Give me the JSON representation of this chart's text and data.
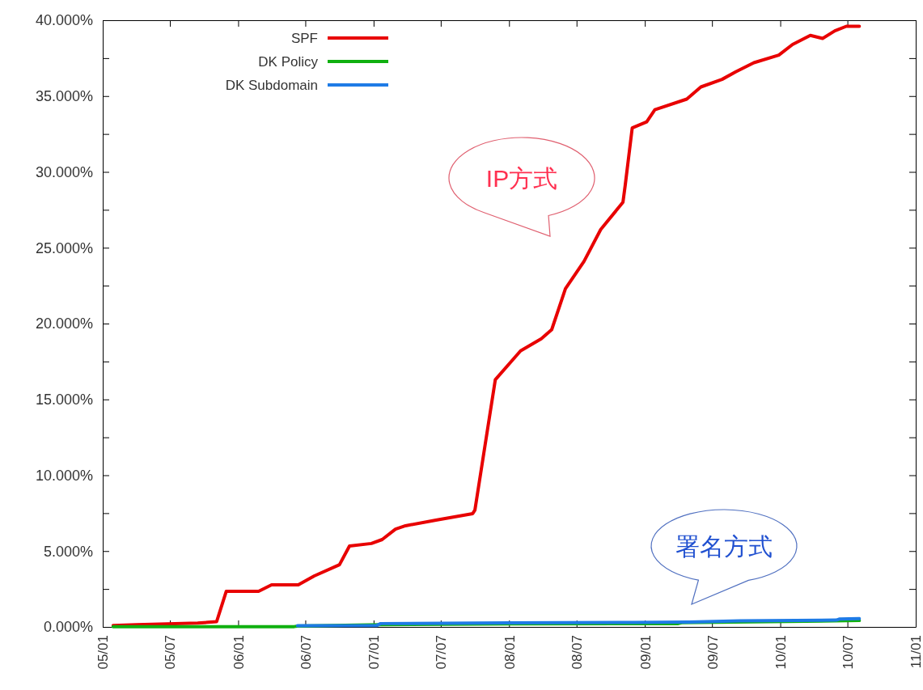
{
  "chart_data": {
    "type": "line",
    "xlim": [
      "2005-01-01",
      "2011-01-01"
    ],
    "xticks": [
      {
        "value": "2005-01-01",
        "label": "05/01"
      },
      {
        "value": "2005-07-01",
        "label": "05/07"
      },
      {
        "value": "2006-01-01",
        "label": "06/01"
      },
      {
        "value": "2006-07-01",
        "label": "06/07"
      },
      {
        "value": "2007-01-01",
        "label": "07/01"
      },
      {
        "value": "2007-07-01",
        "label": "07/07"
      },
      {
        "value": "2008-01-01",
        "label": "08/01"
      },
      {
        "value": "2008-07-01",
        "label": "08/07"
      },
      {
        "value": "2009-01-01",
        "label": "09/01"
      },
      {
        "value": "2009-07-01",
        "label": "09/07"
      },
      {
        "value": "2010-01-01",
        "label": "10/01"
      },
      {
        "value": "2010-07-01",
        "label": "10/07"
      },
      {
        "value": "2011-01-01",
        "label": "11/01"
      }
    ],
    "ylim": [
      0,
      40
    ],
    "yticks": [
      {
        "value": 0,
        "label": "0.000%"
      },
      {
        "value": 2.5,
        "label": null
      },
      {
        "value": 5,
        "label": "5.000%"
      },
      {
        "value": 7.5,
        "label": null
      },
      {
        "value": 10,
        "label": "10.000%"
      },
      {
        "value": 12.5,
        "label": null
      },
      {
        "value": 15,
        "label": "15.000%"
      },
      {
        "value": 17.5,
        "label": null
      },
      {
        "value": 20,
        "label": "20.000%"
      },
      {
        "value": 22.5,
        "label": null
      },
      {
        "value": 25,
        "label": "25.000%"
      },
      {
        "value": 27.5,
        "label": null
      },
      {
        "value": 30,
        "label": "30.000%"
      },
      {
        "value": 32.5,
        "label": null
      },
      {
        "value": 35,
        "label": "35.000%"
      },
      {
        "value": 37.5,
        "label": null
      },
      {
        "value": 40,
        "label": "40.000%"
      }
    ],
    "legend": "top left",
    "annotations": [
      "IP方式",
      "署名方式"
    ],
    "series": [
      {
        "name": "SPF",
        "color": "#e80000",
        "x": [
          "2005-01-29",
          "2005-04-03",
          "2005-09-14",
          "2005-11-04",
          "2005-11-30",
          "2006-02-25",
          "2006-04-01",
          "2006-06-12",
          "2006-07-25",
          "2006-10-01",
          "2006-10-28",
          "2006-12-26",
          "2007-01-24",
          "2007-03-01",
          "2007-03-28",
          "2007-06-18",
          "2007-09-25",
          "2007-10-01",
          "2007-11-25",
          "2008-02-01",
          "2008-03-28",
          "2008-04-25",
          "2008-06-01",
          "2008-07-21",
          "2008-09-04",
          "2008-11-03",
          "2008-11-09",
          "2008-11-28",
          "2009-01-06",
          "2009-01-28",
          "2009-04-24",
          "2009-06-01",
          "2009-07-28",
          "2009-09-03",
          "2009-10-22",
          "2009-12-28",
          "2010-02-03",
          "2010-03-23",
          "2010-04-25",
          "2010-05-28",
          "2010-06-28",
          "2010-08-02"
        ],
        "values": [
          0.1,
          0.15,
          0.25,
          0.35,
          2.35,
          2.35,
          2.77,
          2.77,
          3.36,
          4.1,
          5.33,
          5.5,
          5.76,
          6.45,
          6.67,
          7.04,
          7.47,
          7.7,
          16.3,
          18.2,
          19.0,
          19.6,
          22.3,
          24.1,
          26.2,
          28.0,
          29.1,
          32.9,
          33.3,
          34.1,
          34.8,
          35.6,
          36.1,
          36.6,
          37.2,
          37.7,
          38.4,
          39.0,
          38.8,
          39.3,
          39.6,
          39.6
        ]
      },
      {
        "name": "DK Policy",
        "color": "#10b010",
        "x": [
          "2005-01-29",
          "2006-06-01",
          "2006-06-10",
          "2007-01-20",
          "2008-01-01",
          "2009-04-01",
          "2009-04-10",
          "2010-08-02"
        ],
        "values": [
          0.02,
          0.02,
          0.05,
          0.15,
          0.2,
          0.22,
          0.28,
          0.42
        ]
      },
      {
        "name": "DK Subdomain",
        "color": "#1e7be6",
        "x": [
          "2006-06-10",
          "2007-01-10",
          "2007-01-20",
          "2008-01-01",
          "2008-12-01",
          "2009-05-01",
          "2009-09-15",
          "2010-06-01",
          "2010-06-10",
          "2010-08-02"
        ],
        "values": [
          0.08,
          0.1,
          0.22,
          0.27,
          0.3,
          0.32,
          0.4,
          0.45,
          0.52,
          0.55
        ]
      }
    ]
  }
}
